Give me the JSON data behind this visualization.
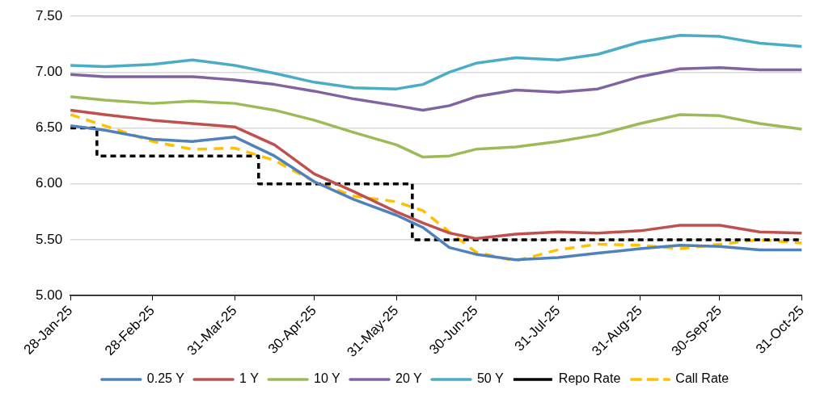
{
  "chart_data": {
    "type": "line",
    "x": [
      "2025-01-28",
      "2025-02-10",
      "2025-02-28",
      "2025-03-15",
      "2025-03-31",
      "2025-04-15",
      "2025-04-30",
      "2025-05-15",
      "2025-05-31",
      "2025-06-10",
      "2025-06-20",
      "2025-06-30",
      "2025-07-15",
      "2025-07-31",
      "2025-08-15",
      "2025-08-31",
      "2025-09-15",
      "2025-09-30",
      "2025-10-15",
      "2025-10-31"
    ],
    "xlim": [
      "2025-01-28",
      "2025-10-31"
    ],
    "xticks": [
      {
        "value": "2025-01-28",
        "label": "28-Jan-25"
      },
      {
        "value": "2025-02-28",
        "label": "28-Feb-25"
      },
      {
        "value": "2025-03-31",
        "label": "31-Mar-25"
      },
      {
        "value": "2025-04-30",
        "label": "30-Apr-25"
      },
      {
        "value": "2025-05-31",
        "label": "31-May-25"
      },
      {
        "value": "2025-06-30",
        "label": "30-Jun-25"
      },
      {
        "value": "2025-07-31",
        "label": "31-Jul-25"
      },
      {
        "value": "2025-08-31",
        "label": "31-Aug-25"
      },
      {
        "value": "2025-09-30",
        "label": "30-Sep-25"
      },
      {
        "value": "2025-10-31",
        "label": "31-Oct-25"
      }
    ],
    "ylim": [
      5,
      7.5
    ],
    "yticks": [
      {
        "value": 5,
        "label": "5.00"
      },
      {
        "value": 5.5,
        "label": "5.50"
      },
      {
        "value": 6,
        "label": "6.00"
      },
      {
        "value": 6.5,
        "label": "6.50"
      },
      {
        "value": 7,
        "label": "7.00"
      },
      {
        "value": 7.5,
        "label": "7.50"
      }
    ],
    "grid": "y",
    "legend": "bottom",
    "marker": "none",
    "series": [
      {
        "name": "0.25 Y",
        "color": "#4f81bd",
        "line_style": "solid",
        "values": [
          6.52,
          6.48,
          6.4,
          6.38,
          6.42,
          6.25,
          6.02,
          5.86,
          5.72,
          5.61,
          5.43,
          5.37,
          5.32,
          5.34,
          5.38,
          5.42,
          5.45,
          5.44,
          5.41,
          5.41
        ]
      },
      {
        "name": "1 Y",
        "color": "#c0504d",
        "line_style": "solid",
        "values": [
          6.66,
          6.62,
          6.57,
          6.54,
          6.51,
          6.35,
          6.09,
          5.93,
          5.75,
          5.65,
          5.56,
          5.51,
          5.55,
          5.57,
          5.56,
          5.58,
          5.63,
          5.63,
          5.57,
          5.56
        ]
      },
      {
        "name": "10 Y",
        "color": "#9bbb59",
        "line_style": "solid",
        "values": [
          6.78,
          6.75,
          6.72,
          6.74,
          6.72,
          6.66,
          6.57,
          6.46,
          6.35,
          6.24,
          6.25,
          6.31,
          6.33,
          6.38,
          6.44,
          6.54,
          6.62,
          6.61,
          6.54,
          6.49
        ]
      },
      {
        "name": "20 Y",
        "color": "#8064a2",
        "line_style": "solid",
        "values": [
          6.98,
          6.96,
          6.96,
          6.96,
          6.93,
          6.89,
          6.83,
          6.76,
          6.7,
          6.66,
          6.7,
          6.78,
          6.84,
          6.82,
          6.85,
          6.96,
          7.03,
          7.04,
          7.02,
          7.02
        ]
      },
      {
        "name": "50 Y",
        "color": "#4bacc6",
        "line_style": "solid",
        "values": [
          7.06,
          7.05,
          7.07,
          7.11,
          7.06,
          6.99,
          6.91,
          6.86,
          6.85,
          6.89,
          7.0,
          7.08,
          7.13,
          7.11,
          7.16,
          7.27,
          7.33,
          7.32,
          7.26,
          7.23
        ]
      },
      {
        "name": "Repo Rate",
        "type": "step",
        "color": "#000000",
        "line_style": "dashed",
        "x": [
          "2025-01-28",
          "2025-02-07",
          "2025-04-09",
          "2025-06-06",
          "2025-10-31"
        ],
        "values": [
          6.5,
          6.25,
          6.0,
          5.5,
          5.5
        ]
      },
      {
        "name": "Call Rate",
        "color": "#ffc000",
        "line_style": "dashed",
        "values": [
          6.62,
          6.52,
          6.38,
          6.31,
          6.32,
          6.21,
          6.02,
          5.89,
          5.84,
          5.76,
          5.57,
          5.39,
          5.31,
          5.41,
          5.46,
          5.45,
          5.42,
          5.46,
          5.5,
          5.47
        ]
      }
    ]
  }
}
